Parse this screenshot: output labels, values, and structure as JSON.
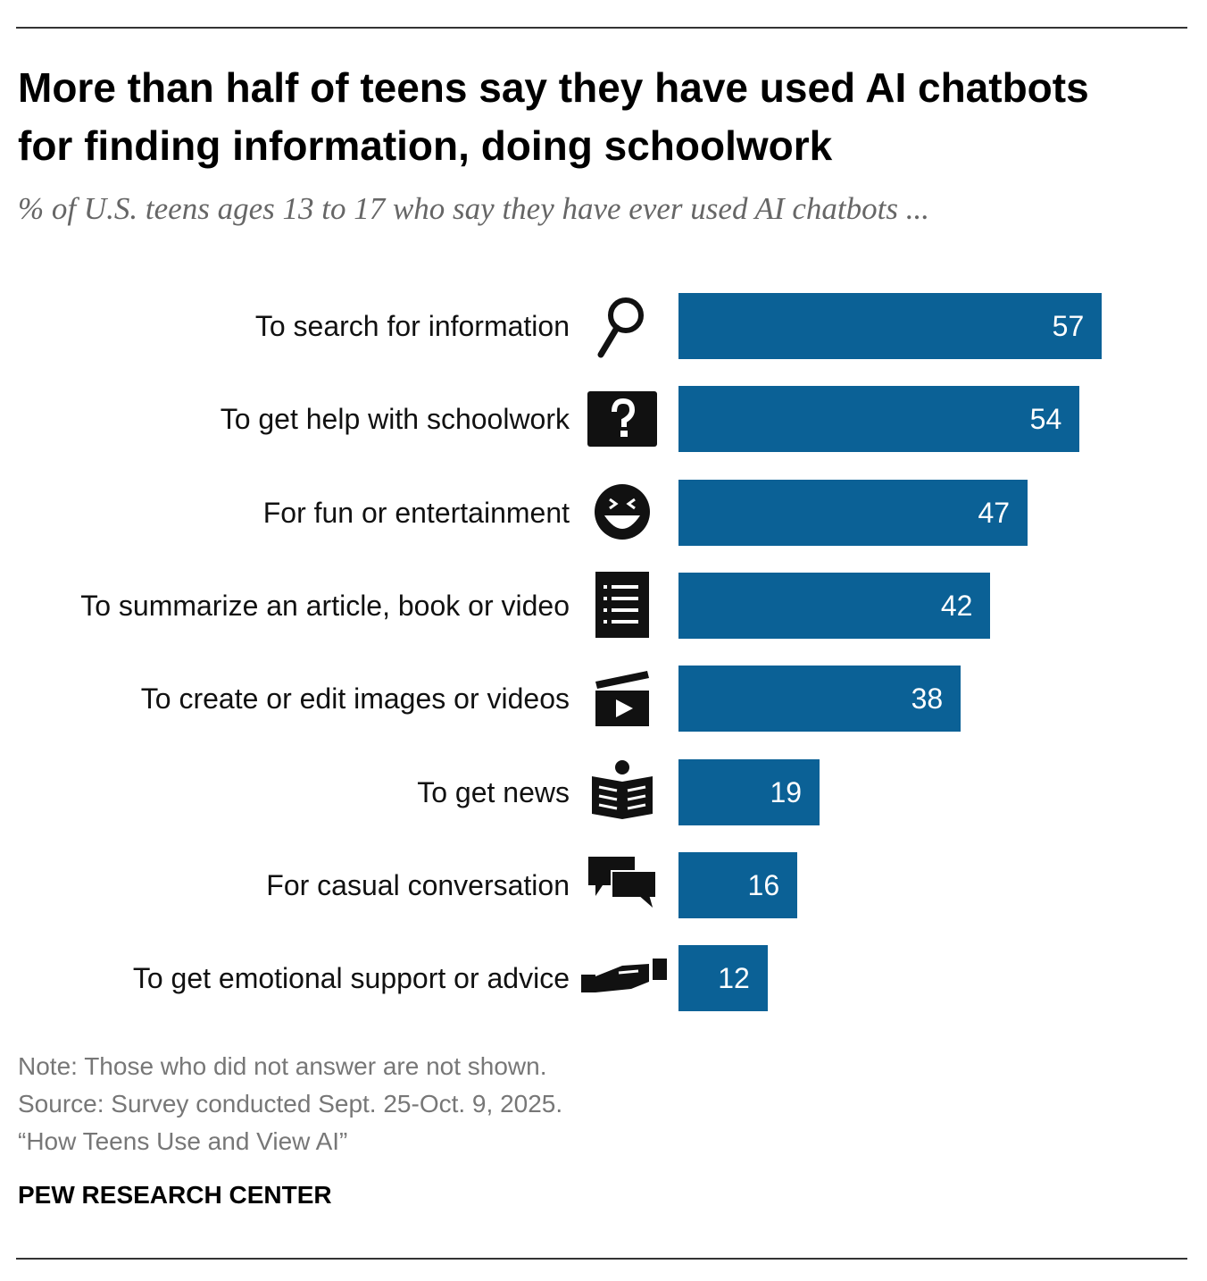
{
  "chart_data": {
    "type": "bar",
    "title": "More than half of teens say they have used AI chatbots for finding information, doing schoolwork",
    "subtitle": "% of U.S. teens ages 13 to 17 who say they have ever used AI chatbots ...",
    "categories": [
      "To search for information",
      "To get help with schoolwork",
      "For fun or entertainment",
      "To summarize an article, book or video",
      "To create or edit images or videos",
      "To get news",
      "For casual conversation",
      "To get emotional support or advice"
    ],
    "values": [
      57,
      54,
      47,
      42,
      38,
      19,
      16,
      12
    ],
    "color": "#0b6196",
    "note": "Note: Those who did not answer are not shown.",
    "source": "Source: Survey conducted Sept. 25-Oct. 9, 2025.",
    "report": "“How Teens Use and View AI”",
    "credit": "PEW RESEARCH CENTER"
  }
}
